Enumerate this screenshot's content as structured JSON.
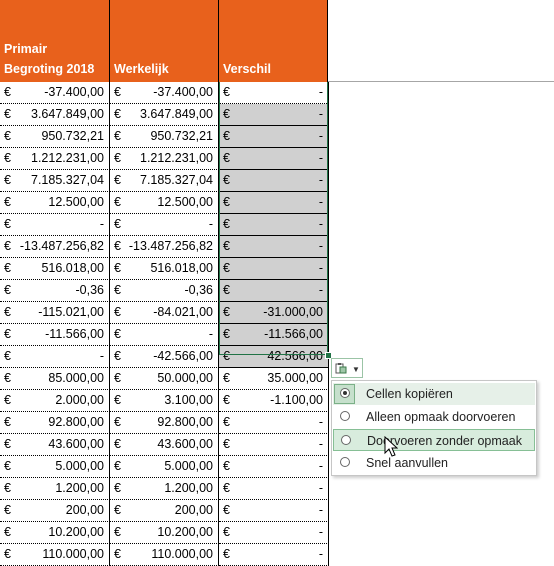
{
  "headers": {
    "col1": "Primair\nBegroting 2018",
    "col2": "Werkelijk",
    "col3": "Verschil"
  },
  "currency": "€",
  "rows": [
    [
      "-37.400,00",
      "-37.400,00",
      "-"
    ],
    [
      "3.647.849,00",
      "3.647.849,00",
      "-"
    ],
    [
      "950.732,21",
      "950.732,21",
      "-"
    ],
    [
      "1.212.231,00",
      "1.212.231,00",
      "-"
    ],
    [
      "7.185.327,04",
      "7.185.327,04",
      "-"
    ],
    [
      "12.500,00",
      "12.500,00",
      "-"
    ],
    [
      "-",
      "-",
      "-"
    ],
    [
      "-13.487.256,82",
      "-13.487.256,82",
      "-"
    ],
    [
      "516.018,00",
      "516.018,00",
      "-"
    ],
    [
      "-0,36",
      "-0,36",
      "-"
    ],
    [
      "-115.021,00",
      "-84.021,00",
      "-31.000,00"
    ],
    [
      "-11.566,00",
      "-",
      "-11.566,00"
    ],
    [
      "-",
      "-42.566,00",
      "42.566,00"
    ],
    [
      "85.000,00",
      "50.000,00",
      "35.000,00"
    ],
    [
      "2.000,00",
      "3.100,00",
      "-1.100,00"
    ],
    [
      "92.800,00",
      "92.800,00",
      "-"
    ],
    [
      "43.600,00",
      "43.600,00",
      "-"
    ],
    [
      "5.000,00",
      "5.000,00",
      "-"
    ],
    [
      "1.200,00",
      "1.200,00",
      "-"
    ],
    [
      "200,00",
      "200,00",
      "-"
    ],
    [
      "10.200,00",
      "10.200,00",
      "-"
    ],
    [
      "110.000,00",
      "110.000,00",
      "-"
    ]
  ],
  "paste_menu": {
    "items": [
      "Cellen kopiëren",
      "Alleen opmaak doorvoeren",
      "Doorvoeren zonder opmaak",
      "Snel aanvullen"
    ],
    "selected_index": 0,
    "hover_index": 2
  },
  "colors": {
    "header_bg": "#e8611c",
    "selection_border": "#217346",
    "selected_fill": "#d0d0d0"
  }
}
